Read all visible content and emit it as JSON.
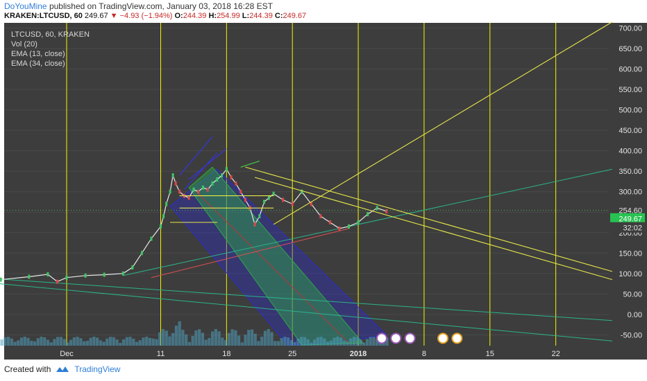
{
  "header": {
    "author": "DoYouMine",
    "published_text": "published on TradingView.com, January 03, 2018 16:28 EST",
    "symbol_line": "KRAKEN:LTCUSD, 60",
    "last": "249.67",
    "change": "−4.93 (−1.94%)",
    "o_label": "O:",
    "o_val": "244.39",
    "h_label": "H:",
    "h_val": "254.99",
    "l_label": "L:",
    "l_val": "244.39",
    "c_label": "C:",
    "c_val": "249.67"
  },
  "legend": {
    "symbol": "LTCUSD, 60, KRAKEN",
    "vol": "Vol (20)",
    "ema13": "EMA (13, close)",
    "ema34": "EMA (34, close)"
  },
  "footer": {
    "created_with": "Created with",
    "brand": "TradingView"
  },
  "price_tags": {
    "dotted": "254.60",
    "last": "249.67",
    "countdown": "32:02"
  },
  "colors": {
    "background": "#3d3d3d",
    "vertical_lines": "#f5f500",
    "trendlines": "#e8e84a",
    "channel_blue": "#2b2bd6",
    "channel_green": "#2fa84a",
    "ema_line": "#2bb58a",
    "price_tag_green": "#27c251"
  },
  "chart_data": {
    "type": "line",
    "symbol": "LTCUSD, 60, KRAKEN",
    "y_ticks": [
      700,
      650,
      600,
      550,
      500,
      450,
      400,
      350,
      300,
      250,
      200,
      150,
      100,
      50,
      0,
      -50
    ],
    "y_tick_labels": [
      "700.00",
      "650.00",
      "600.00",
      "550.00",
      "500.00",
      "450.00",
      "400.00",
      "350.00",
      "300.00",
      "250.00",
      "200.00",
      "150.00",
      "100.00",
      "50.00",
      "0.00",
      "-50.00"
    ],
    "ylim": [
      -75,
      710
    ],
    "x_tick_labels": [
      "Dec",
      "11",
      "18",
      "25",
      "2018",
      "8",
      "15",
      "22"
    ],
    "x_tick_days": [
      0,
      10,
      17,
      24,
      31,
      38,
      45,
      52
    ],
    "xlim": [
      -9.5,
      58
    ],
    "grid": true,
    "vertical_line_days": [
      0,
      10,
      17,
      24,
      31,
      38,
      45,
      52
    ],
    "price_series": {
      "name": "LTCUSD",
      "x": [
        -9.5,
        -7,
        -4,
        -2,
        -1,
        0,
        2,
        4,
        6,
        7,
        8,
        9,
        10,
        10.3,
        10.6,
        11,
        11.3,
        11.6,
        12,
        12.5,
        13,
        13.5,
        14,
        14.5,
        15,
        15.5,
        16,
        16.5,
        17,
        17.5,
        18,
        18.5,
        19,
        19.5,
        20,
        20.5,
        21,
        21.5,
        22,
        23,
        24,
        25,
        26,
        27,
        28,
        29,
        30,
        31,
        32,
        33,
        34
      ],
      "y": [
        80,
        85,
        92,
        98,
        80,
        90,
        95,
        97,
        100,
        115,
        150,
        185,
        215,
        240,
        270,
        300,
        340,
        320,
        300,
        290,
        285,
        305,
        300,
        310,
        305,
        320,
        330,
        340,
        355,
        335,
        320,
        300,
        280,
        260,
        220,
        240,
        275,
        285,
        295,
        280,
        270,
        300,
        270,
        240,
        225,
        210,
        215,
        225,
        245,
        260,
        252
      ]
    },
    "ema_lines": [
      "EMA (13, close)",
      "EMA (34, close)"
    ],
    "last_price": 249.67,
    "dotted_level": 254.6
  }
}
